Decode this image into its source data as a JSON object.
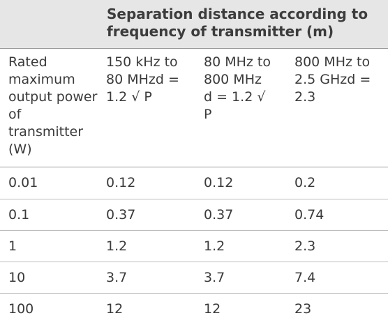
{
  "header": {
    "title": "Separation distance according to frequency of transmitter (m)"
  },
  "columns": {
    "rated_power": "Rated maximum output power of transmitter (W)",
    "band_150k_80m": "150 kHz to 80 MHzd = 1.2 √ P",
    "band_80m_800m": "80 MHz to 800 MHz d = 1.2 √ P",
    "band_800m_2_5g": "800 MHz to 2.5 GHzd = 2.3"
  },
  "rows": [
    {
      "power": "0.01",
      "d1": "0.12",
      "d2": "0.12",
      "d3": "0.2"
    },
    {
      "power": "0.1",
      "d1": "0.37",
      "d2": "0.37",
      "d3": "0.74"
    },
    {
      "power": "1",
      "d1": "1.2",
      "d2": "1.2",
      "d3": "2.3"
    },
    {
      "power": "10",
      "d1": "3.7",
      "d2": "3.7",
      "d3": "7.4"
    },
    {
      "power": "100",
      "d1": "12",
      "d2": "12",
      "d3": "23"
    }
  ]
}
